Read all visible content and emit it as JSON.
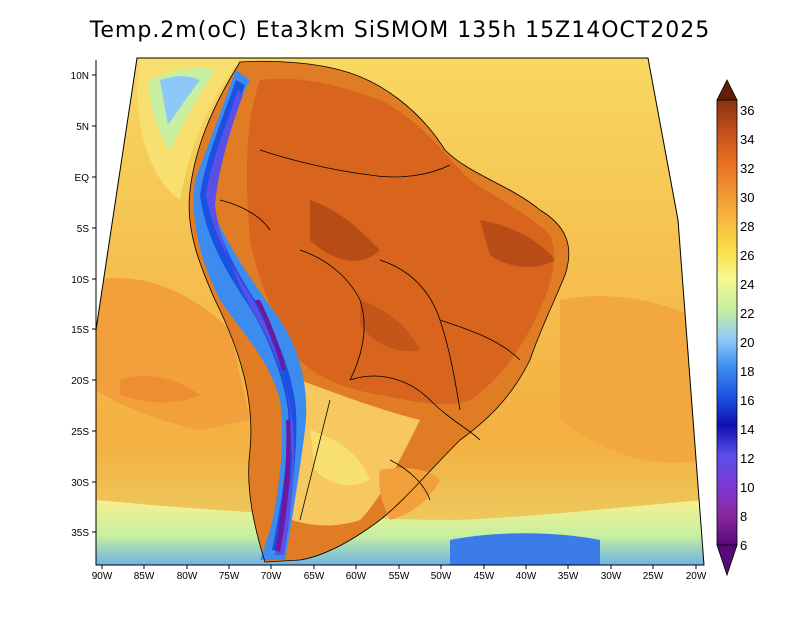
{
  "title": "Temp.2m(oC) Eta3km SiSMOM 135h 15Z14OCT2025",
  "lat_labels": [
    "10N",
    "5N",
    "EQ",
    "5S",
    "10S",
    "15S",
    "20S",
    "25S",
    "30S",
    "35S"
  ],
  "lon_labels": [
    "90W",
    "85W",
    "80W",
    "75W",
    "70W",
    "65W",
    "60W",
    "55W",
    "50W",
    "45W",
    "40W",
    "35W",
    "30W",
    "25W",
    "20W"
  ],
  "colorbar": {
    "labels": [
      "6",
      "8",
      "10",
      "12",
      "14",
      "16",
      "18",
      "20",
      "22",
      "24",
      "26",
      "28",
      "30",
      "32",
      "34",
      "36"
    ],
    "colors": [
      "#5a0a78",
      "#8a2aa0",
      "#7a3ad8",
      "#5a50e8",
      "#1010b0",
      "#1c50e0",
      "#3c8cf0",
      "#8cc8f8",
      "#c8f0a0",
      "#f8f890",
      "#f8e048",
      "#f8b840",
      "#f09030",
      "#e87020",
      "#c05018",
      "#8a3010",
      "#602008"
    ]
  },
  "colors": {
    "ocean": "#f5c558",
    "ocean_warm": "#f2a03c",
    "land_hot": "#d8601e",
    "land_hotter": "#b84c16",
    "andes_cold": "#3040d0",
    "andes_colder": "#6a1aa0"
  }
}
